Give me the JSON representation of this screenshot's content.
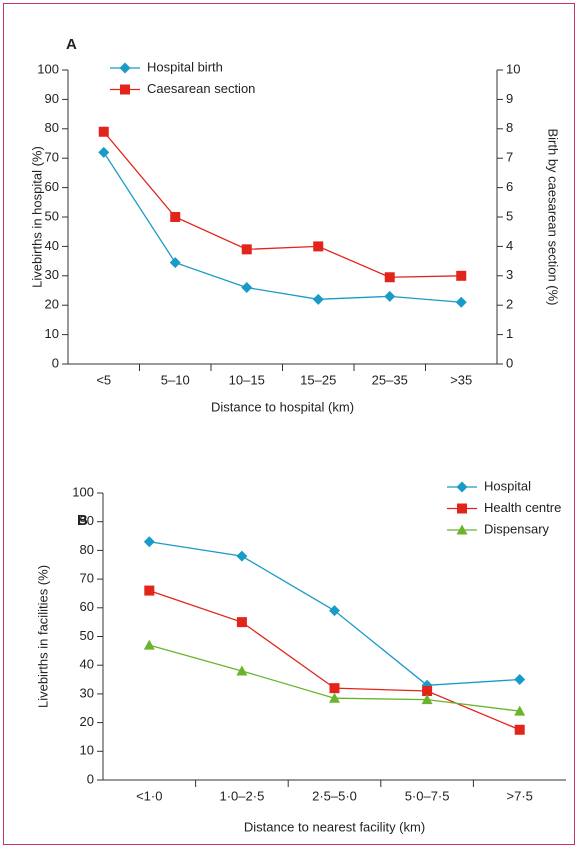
{
  "chart_data": [
    {
      "type": "line",
      "title": "A",
      "x_label": "Distance to hospital (km)",
      "y_label": "Livebirths in hospital (%)",
      "y2_label": "Birth by caesarean section (%)",
      "categories": [
        "<5",
        "5–10",
        "10–15",
        "15–25",
        "25–35",
        ">35"
      ],
      "series": [
        {
          "name": "Hospital birth",
          "color": "#1a9bc7",
          "marker": "diamond",
          "values": [
            72,
            34.5,
            26,
            22,
            23,
            21
          ]
        },
        {
          "name": "Caesarean section",
          "color": "#e3241b",
          "marker": "square",
          "axis": "y2",
          "values": [
            7.9,
            5.0,
            3.9,
            4.0,
            2.95,
            3.0
          ]
        }
      ],
      "ylim": [
        0,
        100
      ],
      "yticks": [
        0,
        10,
        20,
        30,
        40,
        50,
        60,
        70,
        80,
        90,
        100
      ],
      "y2lim": [
        0,
        10
      ],
      "y2ticks": [
        0,
        1,
        2,
        3,
        4,
        5,
        6,
        7,
        8,
        9,
        10
      ],
      "legend": "upper left"
    },
    {
      "type": "line",
      "title": "B",
      "x_label": "Distance to nearest facility (km)",
      "y_label": "Livebirths in facilities (%)",
      "categories": [
        "<1·0",
        "1·0–2·5",
        "2·5–5·0",
        "5·0–7·5",
        ">7·5"
      ],
      "series": [
        {
          "name": "Hospital",
          "color": "#1a9bc7",
          "marker": "diamond",
          "values": [
            83,
            78,
            59,
            33,
            35
          ]
        },
        {
          "name": "Health centre",
          "color": "#e3241b",
          "marker": "square",
          "values": [
            66,
            55,
            32,
            31,
            17.5
          ]
        },
        {
          "name": "Dispensary",
          "color": "#6ab42d",
          "marker": "triangle",
          "values": [
            47,
            38,
            28.5,
            28,
            24
          ]
        }
      ],
      "ylim": [
        0,
        100
      ],
      "yticks": [
        0,
        10,
        20,
        30,
        40,
        50,
        60,
        70,
        80,
        90,
        100
      ],
      "legend": "upper right"
    }
  ]
}
